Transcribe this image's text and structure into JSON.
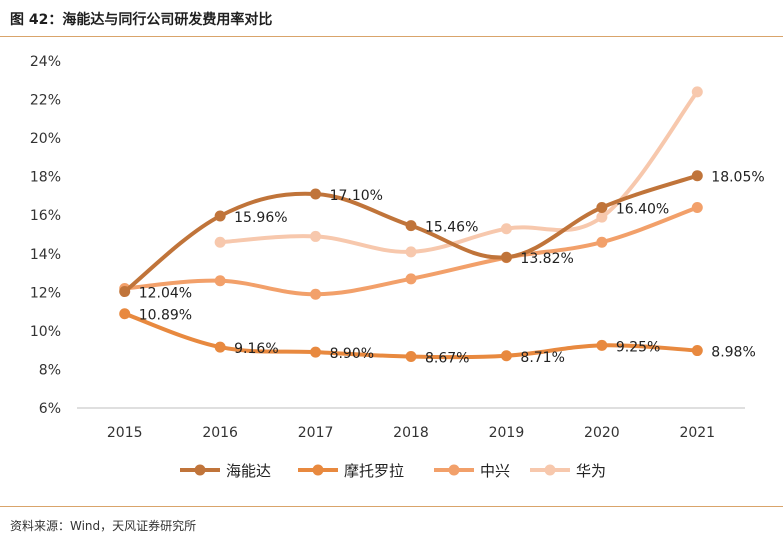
{
  "figure": {
    "title": "图 42：海能达与同行公司研发费用率对比",
    "source": "资料来源：Wind，天风证券研究所"
  },
  "chart_data": {
    "type": "line",
    "title": "海能达与同行公司研发费用率对比",
    "xlabel": "",
    "ylabel": "",
    "categories": [
      "2015",
      "2016",
      "2017",
      "2018",
      "2019",
      "2020",
      "2021"
    ],
    "ylim": [
      6,
      24
    ],
    "yticks": [
      6,
      8,
      10,
      12,
      14,
      16,
      18,
      20,
      22,
      24
    ],
    "ytick_labels": [
      "6%",
      "8%",
      "10%",
      "12%",
      "14%",
      "16%",
      "18%",
      "20%",
      "22%",
      "24%"
    ],
    "legend_position": "bottom",
    "series": [
      {
        "name": "海能达",
        "color": "#c0743a",
        "values": [
          12.04,
          15.96,
          17.1,
          15.46,
          13.82,
          16.4,
          18.05
        ],
        "labels": [
          "12.04%",
          "15.96%",
          "17.10%",
          "15.46%",
          "13.82%",
          "16.40%",
          "18.05%"
        ]
      },
      {
        "name": "摩托罗拉",
        "color": "#e8893f",
        "values": [
          10.89,
          9.16,
          8.9,
          8.67,
          8.71,
          9.25,
          8.98
        ],
        "labels": [
          "10.89%",
          "9.16%",
          "8.90%",
          "8.67%",
          "8.71%",
          "9.25%",
          "8.98%"
        ]
      },
      {
        "name": "中兴",
        "color": "#f2a06a",
        "values": [
          12.2,
          12.6,
          11.9,
          12.7,
          13.8,
          14.6,
          16.4
        ],
        "labels": null
      },
      {
        "name": "华为",
        "color": "#f7c8ad",
        "values": [
          null,
          14.6,
          14.9,
          14.1,
          15.3,
          15.9,
          22.4
        ],
        "labels": null
      }
    ]
  }
}
